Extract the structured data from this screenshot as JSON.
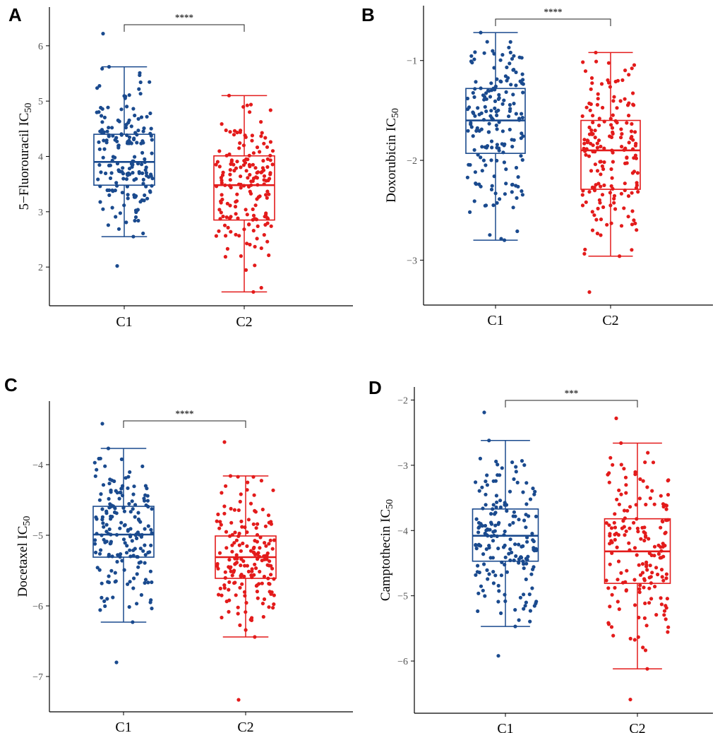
{
  "colors": {
    "c1": "#1a4a8e",
    "c2": "#e31b1b",
    "axis": "#000000"
  },
  "chart_data": [
    {
      "panel": "A",
      "type": "box",
      "ylabel": "5−Fluorouracil",
      "ylabel_suffix": "IC",
      "ylabel_sub": "50",
      "ylim": [
        1.3,
        6.7
      ],
      "yticks": [
        2,
        3,
        4,
        5,
        6
      ],
      "ytick_labels": [
        "2",
        "3",
        "4",
        "5",
        "6"
      ],
      "categories": [
        "C1",
        "C2"
      ],
      "significance": "****",
      "seed": 11,
      "groups": [
        {
          "name": "C1",
          "whisker_low": 2.55,
          "q1": 3.48,
          "median": 3.9,
          "q3": 4.4,
          "whisker_high": 5.62,
          "outliers": [
            6.22,
            2.02
          ],
          "n": 180
        },
        {
          "name": "C2",
          "whisker_low": 1.55,
          "q1": 2.85,
          "median": 3.48,
          "q3": 4.01,
          "whisker_high": 5.1,
          "outliers": [],
          "n": 175
        }
      ]
    },
    {
      "panel": "B",
      "type": "box",
      "ylabel": "Doxorubicin",
      "ylabel_suffix": "IC",
      "ylabel_sub": "50",
      "ylim": [
        -3.45,
        -0.45
      ],
      "yticks": [
        -1,
        -2,
        -3
      ],
      "ytick_labels": [
        "−1",
        "−2",
        "−3"
      ],
      "categories": [
        "C1",
        "C2"
      ],
      "significance": "****",
      "seed": 23,
      "groups": [
        {
          "name": "C1",
          "whisker_low": -2.8,
          "q1": -1.93,
          "median": -1.6,
          "q3": -1.28,
          "whisker_high": -0.72,
          "outliers": [],
          "n": 180
        },
        {
          "name": "C2",
          "whisker_low": -2.96,
          "q1": -2.29,
          "median": -1.9,
          "q3": -1.6,
          "whisker_high": -0.92,
          "outliers": [
            -3.32
          ],
          "n": 175
        }
      ]
    },
    {
      "panel": "C",
      "type": "box",
      "ylabel": "Docetaxel",
      "ylabel_suffix": "IC",
      "ylabel_sub": "50",
      "ylim": [
        -7.5,
        -3.1
      ],
      "yticks": [
        -4,
        -5,
        -6,
        -7
      ],
      "ytick_labels": [
        "−4",
        "−5",
        "−6",
        "−7"
      ],
      "categories": [
        "C1",
        "C2"
      ],
      "significance": "****",
      "seed": 37,
      "groups": [
        {
          "name": "C1",
          "whisker_low": -6.23,
          "q1": -5.31,
          "median": -4.99,
          "q3": -4.59,
          "whisker_high": -3.77,
          "outliers": [
            -3.42,
            -6.8
          ],
          "n": 180
        },
        {
          "name": "C2",
          "whisker_low": -6.44,
          "q1": -5.61,
          "median": -5.31,
          "q3": -5.01,
          "whisker_high": -4.16,
          "outliers": [
            -3.68,
            -7.33
          ],
          "n": 175
        }
      ]
    },
    {
      "panel": "D",
      "type": "box",
      "ylabel": "Camptothecin",
      "ylabel_suffix": "IC",
      "ylabel_sub": "50",
      "ylim": [
        -6.8,
        -1.8
      ],
      "yticks": [
        -2,
        -3,
        -4,
        -5,
        -6
      ],
      "ytick_labels": [
        "−2",
        "−3",
        "−4",
        "−5",
        "−6"
      ],
      "categories": [
        "C1",
        "C2"
      ],
      "significance": "***",
      "seed": 53,
      "groups": [
        {
          "name": "C1",
          "whisker_low": -5.47,
          "q1": -4.47,
          "median": -4.08,
          "q3": -3.67,
          "whisker_high": -2.62,
          "outliers": [
            -2.19,
            -5.92
          ],
          "n": 180
        },
        {
          "name": "C2",
          "whisker_low": -6.12,
          "q1": -4.81,
          "median": -4.32,
          "q3": -3.82,
          "whisker_high": -2.66,
          "outliers": [
            -2.28,
            -6.59
          ],
          "n": 175
        }
      ]
    }
  ]
}
